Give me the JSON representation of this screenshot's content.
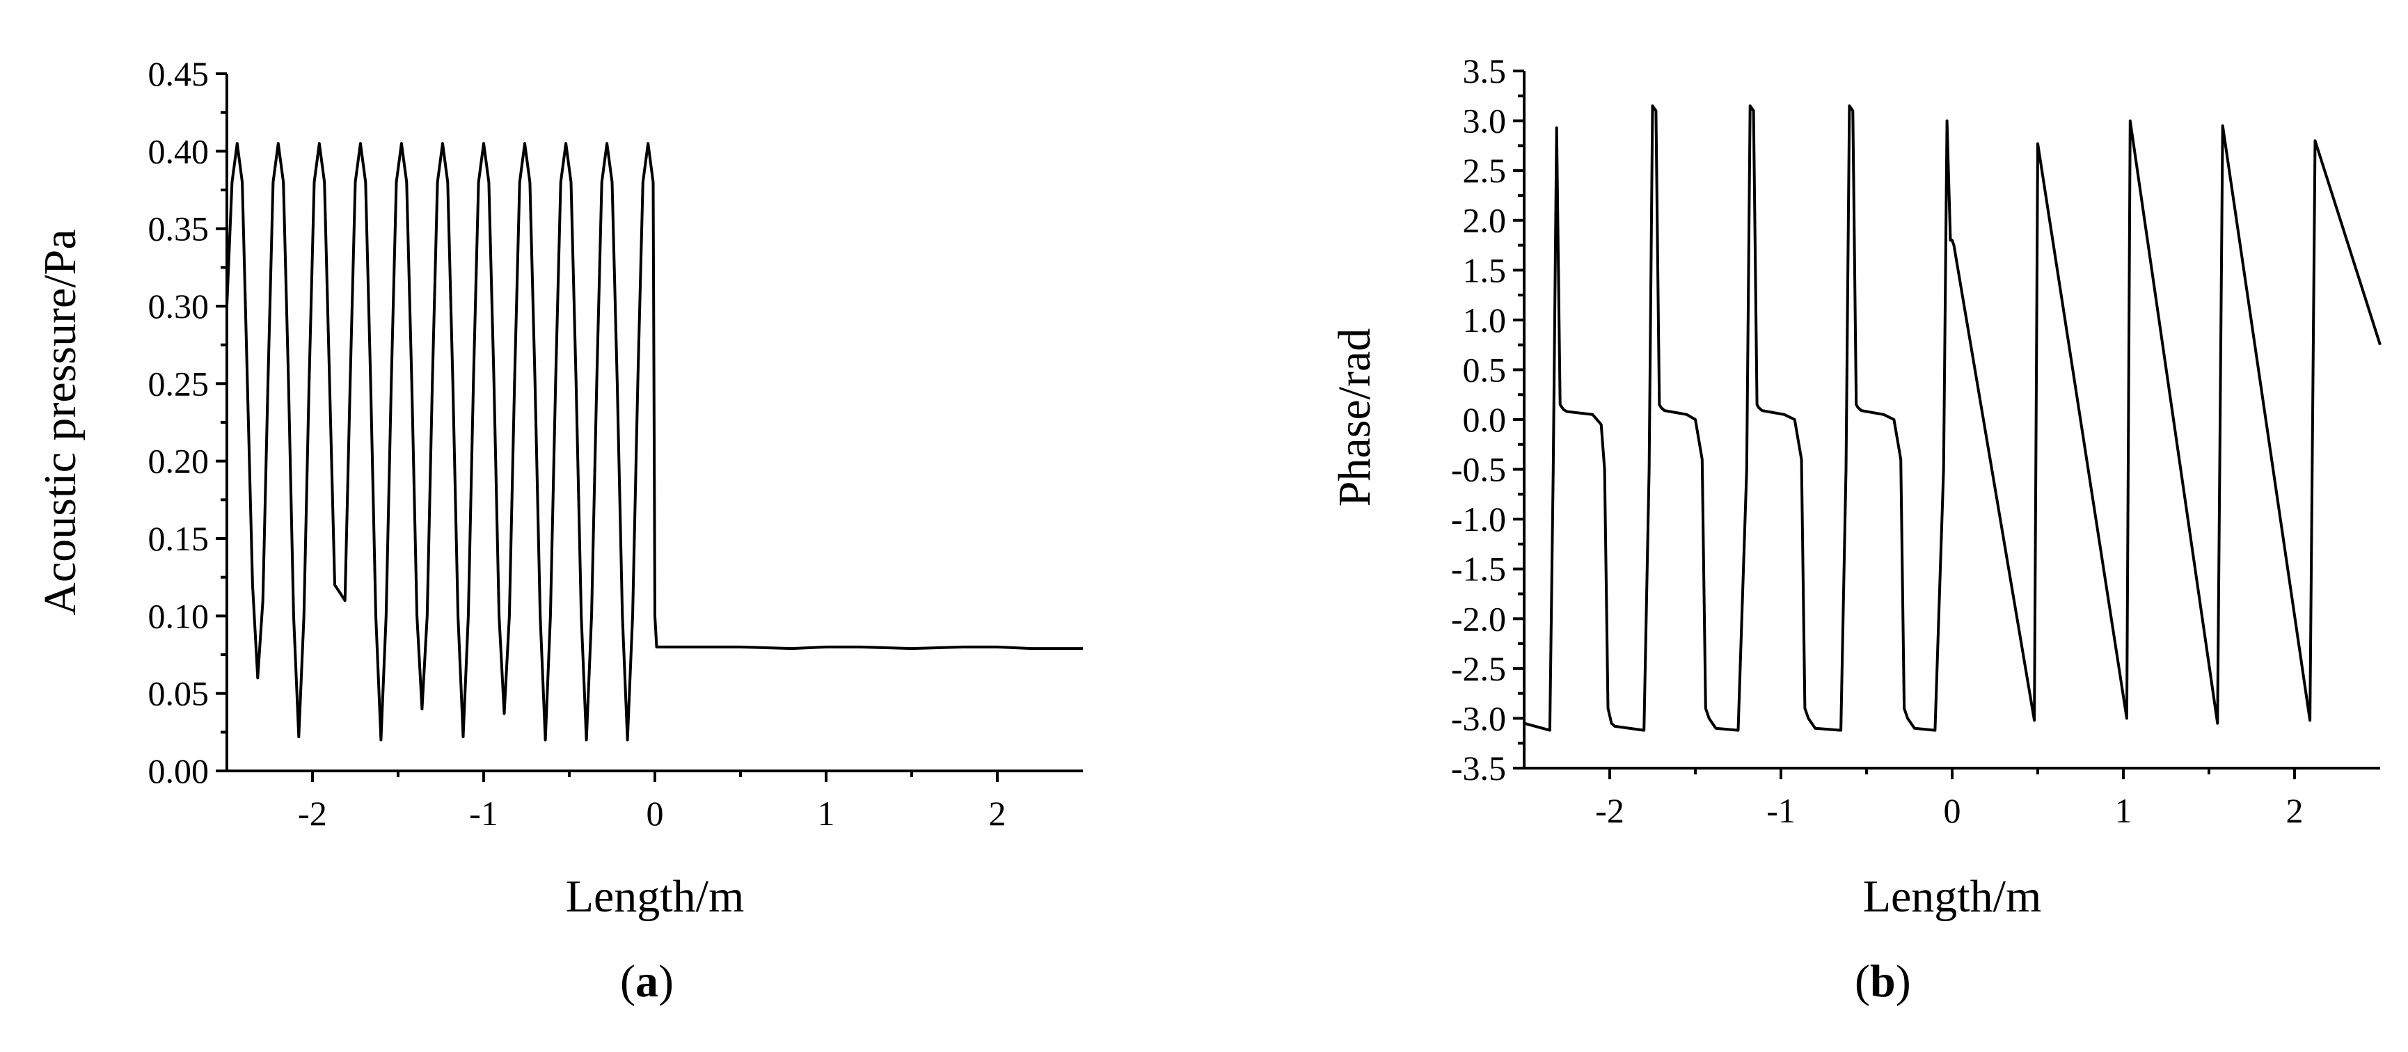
{
  "chart_data": [
    {
      "type": "line",
      "panel_label": "a",
      "xlabel": "Length/m",
      "ylabel": "Acoustic pressure/Pa",
      "xlim": [
        -2.5,
        2.5
      ],
      "ylim": [
        0.0,
        0.45
      ],
      "x_ticks": [
        -2,
        -1,
        0,
        1,
        2
      ],
      "x_tick_labels": [
        "-2",
        "-1",
        "0",
        "1",
        "2"
      ],
      "y_ticks": [
        0.0,
        0.05,
        0.1,
        0.15,
        0.2,
        0.25,
        0.3,
        0.35,
        0.4,
        0.45
      ],
      "y_tick_labels": [
        "0.00",
        "0.05",
        "0.10",
        "0.15",
        "0.20",
        "0.25",
        "0.30",
        "0.35",
        "0.40",
        "0.45"
      ],
      "grid": false,
      "series": [
        {
          "x": [
            -2.5,
            -2.47,
            -2.44,
            -2.41,
            -2.38,
            -2.35,
            -2.32,
            -2.29,
            -2.26,
            -2.23,
            -2.2,
            -2.17,
            -2.14,
            -2.11,
            -2.08,
            -2.05,
            -2.02,
            -1.99,
            -1.96,
            -1.93,
            -1.9,
            -1.87,
            -1.84,
            -1.81,
            -1.78,
            -1.75,
            -1.72,
            -1.69,
            -1.66,
            -1.63,
            -1.6,
            -1.57,
            -1.54,
            -1.51,
            -1.48,
            -1.45,
            -1.42,
            -1.39,
            -1.36,
            -1.33,
            -1.3,
            -1.27,
            -1.24,
            -1.21,
            -1.18,
            -1.15,
            -1.12,
            -1.09,
            -1.06,
            -1.03,
            -1.0,
            -0.97,
            -0.94,
            -0.91,
            -0.88,
            -0.85,
            -0.82,
            -0.79,
            -0.76,
            -0.73,
            -0.7,
            -0.67,
            -0.64,
            -0.61,
            -0.58,
            -0.55,
            -0.52,
            -0.49,
            -0.46,
            -0.43,
            -0.4,
            -0.37,
            -0.34,
            -0.31,
            -0.28,
            -0.25,
            -0.22,
            -0.19,
            -0.16,
            -0.13,
            -0.1,
            -0.07,
            -0.04,
            -0.01,
            0.0,
            0.01,
            0.2,
            0.5,
            0.8,
            1.0,
            1.2,
            1.5,
            1.8,
            2.0,
            2.2,
            2.5
          ],
          "y": [
            0.3,
            0.38,
            0.405,
            0.38,
            0.25,
            0.12,
            0.06,
            0.11,
            0.25,
            0.38,
            0.405,
            0.38,
            0.25,
            0.1,
            0.022,
            0.1,
            0.25,
            0.38,
            0.405,
            0.38,
            0.25,
            0.12,
            0.115,
            0.11,
            0.25,
            0.38,
            0.405,
            0.38,
            0.25,
            0.1,
            0.02,
            0.1,
            0.25,
            0.38,
            0.405,
            0.38,
            0.25,
            0.1,
            0.04,
            0.1,
            0.25,
            0.38,
            0.405,
            0.38,
            0.25,
            0.1,
            0.022,
            0.1,
            0.25,
            0.38,
            0.405,
            0.38,
            0.25,
            0.1,
            0.037,
            0.1,
            0.25,
            0.38,
            0.405,
            0.38,
            0.25,
            0.1,
            0.02,
            0.1,
            0.25,
            0.38,
            0.405,
            0.38,
            0.25,
            0.1,
            0.02,
            0.1,
            0.25,
            0.38,
            0.405,
            0.38,
            0.25,
            0.1,
            0.02,
            0.1,
            0.25,
            0.38,
            0.405,
            0.38,
            0.1,
            0.08,
            0.08,
            0.08,
            0.079,
            0.08,
            0.08,
            0.079,
            0.08,
            0.08,
            0.079,
            0.079
          ]
        }
      ]
    },
    {
      "type": "line",
      "panel_label": "b",
      "xlabel": "Length/m",
      "ylabel": "Phase/rad",
      "xlim": [
        -2.5,
        2.5
      ],
      "ylim": [
        -3.5,
        3.5
      ],
      "x_ticks": [
        -2,
        -1,
        0,
        1,
        2
      ],
      "x_tick_labels": [
        "-2",
        "-1",
        "0",
        "1",
        "2"
      ],
      "y_ticks": [
        -3.5,
        -3.0,
        -2.5,
        -2.0,
        -1.5,
        -1.0,
        -0.5,
        0.0,
        0.5,
        1.0,
        1.5,
        2.0,
        2.5,
        3.0,
        3.5
      ],
      "y_tick_labels": [
        "-3.5",
        "-3.0",
        "-2.5",
        "-2.0",
        "-1.5",
        "-1.0",
        "-0.5",
        "0.0",
        "0.5",
        "1.0",
        "1.5",
        "2.0",
        "2.5",
        "3.0",
        "3.5"
      ],
      "grid": false,
      "series": [
        {
          "x": [
            -2.5,
            -2.35,
            -2.33,
            -2.31,
            -2.29,
            -2.27,
            -2.25,
            -2.1,
            -2.05,
            -2.03,
            -2.01,
            -1.99,
            -1.97,
            -1.8,
            -1.77,
            -1.75,
            -1.73,
            -1.71,
            -1.7,
            -1.68,
            -1.55,
            -1.5,
            -1.46,
            -1.44,
            -1.42,
            -1.4,
            -1.38,
            -1.25,
            -1.2,
            -1.18,
            -1.16,
            -1.14,
            -1.13,
            -1.11,
            -0.98,
            -0.92,
            -0.88,
            -0.86,
            -0.84,
            -0.82,
            -0.8,
            -0.65,
            -0.62,
            -0.6,
            -0.58,
            -0.56,
            -0.55,
            -0.53,
            -0.4,
            -0.34,
            -0.3,
            -0.28,
            -0.26,
            -0.24,
            -0.22,
            -0.1,
            -0.05,
            -0.03,
            -0.01,
            0.0,
            0.01,
            0.48,
            0.5,
            1.02,
            1.04,
            1.55,
            1.58,
            2.09,
            2.12,
            2.5
          ],
          "y": [
            -3.05,
            -3.12,
            -0.5,
            2.93,
            0.15,
            0.1,
            0.08,
            0.05,
            -0.05,
            -0.5,
            -2.9,
            -3.05,
            -3.08,
            -3.12,
            -0.5,
            3.15,
            3.1,
            0.15,
            0.12,
            0.09,
            0.05,
            0.0,
            -0.4,
            -2.9,
            -3.0,
            -3.05,
            -3.1,
            -3.12,
            -0.5,
            3.15,
            3.1,
            0.15,
            0.12,
            0.09,
            0.05,
            0.0,
            -0.4,
            -2.9,
            -3.0,
            -3.05,
            -3.1,
            -3.12,
            -0.5,
            3.15,
            3.1,
            0.15,
            0.12,
            0.09,
            0.05,
            0.0,
            -0.4,
            -2.9,
            -3.0,
            -3.05,
            -3.1,
            -3.12,
            -0.5,
            3.0,
            1.8,
            1.8,
            1.75,
            -3.02,
            2.77,
            -3.0,
            3.0,
            -3.05,
            2.95,
            -3.02,
            2.8,
            0.75
          ]
        }
      ]
    }
  ]
}
